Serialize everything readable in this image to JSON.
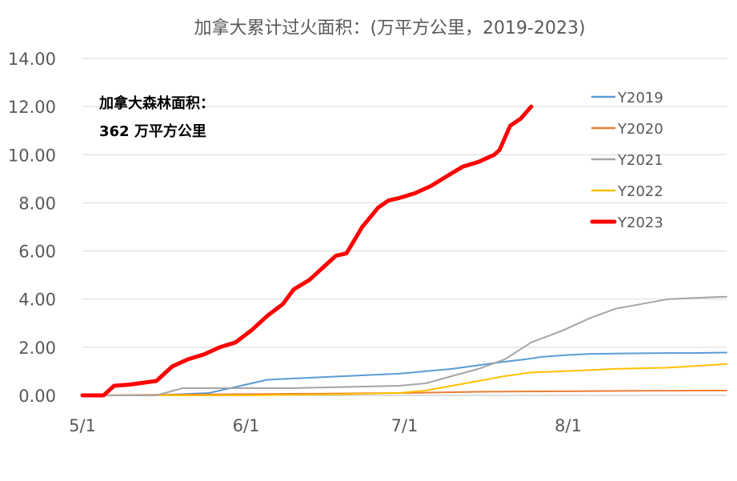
{
  "chart_data": {
    "type": "line",
    "title": "加拿大累计过火面积：(万平方公里，2019-2023)",
    "xlabel": "",
    "ylabel": "",
    "x_ticks": [
      "5/1",
      "6/1",
      "7/1",
      "8/1"
    ],
    "y_ticks": [
      "0.00",
      "2.00",
      "4.00",
      "6.00",
      "8.00",
      "10.00",
      "12.00",
      "14.00"
    ],
    "ylim": [
      0,
      14
    ],
    "grid": "horizontal",
    "legend_position": "right",
    "annotation": [
      "加拿大森林面积：",
      "362 万平方公里"
    ],
    "series": [
      {
        "name": "Y2019",
        "color": "#5B9BD5",
        "width": 2,
        "x": [
          "5/1",
          "5/15",
          "5/20",
          "5/25",
          "5/28",
          "5/31",
          "6/3",
          "6/5",
          "6/10",
          "6/15",
          "6/20",
          "6/25",
          "6/30",
          "7/5",
          "7/10",
          "7/15",
          "7/20",
          "7/24",
          "7/27",
          "8/1",
          "8/5",
          "8/10",
          "8/15",
          "8/20",
          "8/25",
          "8/31"
        ],
        "y": [
          0,
          0,
          0.05,
          0.1,
          0.25,
          0.4,
          0.55,
          0.65,
          0.7,
          0.75,
          0.8,
          0.85,
          0.9,
          1.0,
          1.1,
          1.25,
          1.4,
          1.5,
          1.6,
          1.68,
          1.72,
          1.74,
          1.75,
          1.76,
          1.76,
          1.78
        ]
      },
      {
        "name": "Y2020",
        "color": "#ED7D31",
        "width": 2,
        "x": [
          "5/1",
          "6/1",
          "7/1",
          "7/15",
          "8/1",
          "8/15",
          "8/31"
        ],
        "y": [
          0,
          0.05,
          0.1,
          0.15,
          0.17,
          0.19,
          0.2
        ]
      },
      {
        "name": "Y2021",
        "color": "#A5A5A5",
        "width": 2,
        "x": [
          "5/1",
          "5/15",
          "5/20",
          "5/25",
          "5/31",
          "6/10",
          "6/20",
          "6/30",
          "7/5",
          "7/10",
          "7/15",
          "7/20",
          "7/25",
          "7/31",
          "8/5",
          "8/10",
          "8/15",
          "8/20",
          "8/25",
          "8/31"
        ],
        "y": [
          0,
          0,
          0.3,
          0.3,
          0.3,
          0.3,
          0.35,
          0.4,
          0.5,
          0.8,
          1.1,
          1.5,
          2.2,
          2.7,
          3.2,
          3.6,
          3.8,
          4.0,
          4.05,
          4.1
        ]
      },
      {
        "name": "Y2022",
        "color": "#FFC000",
        "width": 2,
        "x": [
          "5/1",
          "6/1",
          "6/20",
          "6/30",
          "7/5",
          "7/10",
          "7/15",
          "7/20",
          "7/25",
          "7/31",
          "8/10",
          "8/20",
          "8/31"
        ],
        "y": [
          0,
          0,
          0.05,
          0.1,
          0.2,
          0.4,
          0.6,
          0.8,
          0.95,
          1.0,
          1.1,
          1.15,
          1.3
        ]
      },
      {
        "name": "Y2023",
        "color": "#FF0000",
        "width": 5,
        "x": [
          "5/1",
          "5/5",
          "5/7",
          "5/10",
          "5/15",
          "5/18",
          "5/21",
          "5/24",
          "5/27",
          "5/30",
          "6/2",
          "6/5",
          "6/8",
          "6/10",
          "6/13",
          "6/16",
          "6/18",
          "6/20",
          "6/23",
          "6/26",
          "6/28",
          "6/30",
          "7/3",
          "7/6",
          "7/9",
          "7/12",
          "7/15",
          "7/18",
          "7/19",
          "7/21",
          "7/23",
          "7/25"
        ],
        "y": [
          0,
          0,
          0.4,
          0.45,
          0.6,
          1.2,
          1.5,
          1.7,
          2.0,
          2.2,
          2.7,
          3.3,
          3.8,
          4.4,
          4.8,
          5.4,
          5.8,
          5.9,
          7.0,
          7.8,
          8.1,
          8.2,
          8.4,
          8.7,
          9.1,
          9.5,
          9.7,
          10.0,
          10.2,
          11.2,
          11.5,
          12.0
        ]
      }
    ]
  }
}
